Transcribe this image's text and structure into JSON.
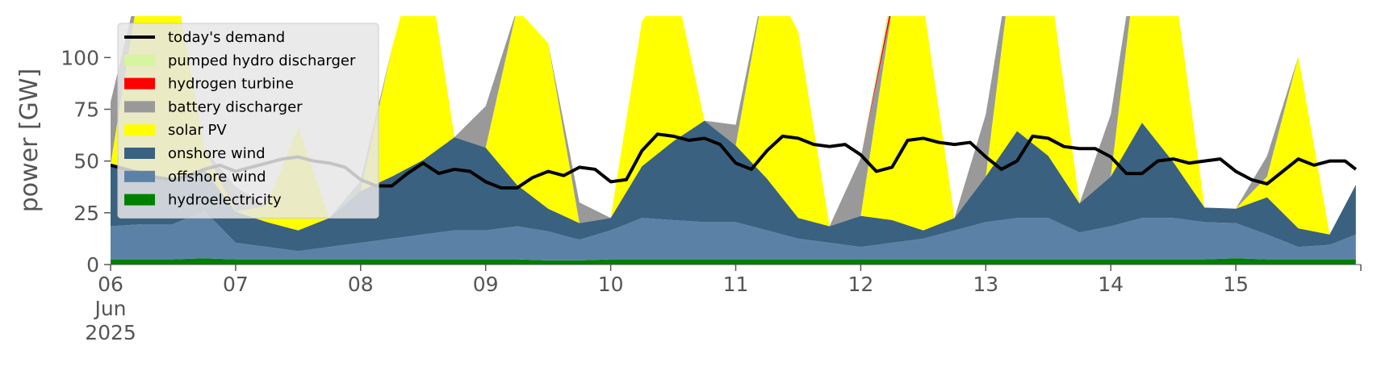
{
  "chart_data": {
    "type": "area",
    "ylabel": "power [GW]",
    "ylim": [
      0,
      120
    ],
    "xlim": [
      "2025-06-06",
      "2025-06-16"
    ],
    "y_ticks": [
      0,
      25,
      50,
      75,
      100
    ],
    "x_ticks": [
      {
        "label": "06",
        "sublabel1": "Jun",
        "sublabel2": "2025",
        "date": "2025-06-06"
      },
      {
        "label": "07",
        "date": "2025-06-07"
      },
      {
        "label": "08",
        "date": "2025-06-08"
      },
      {
        "label": "09",
        "date": "2025-06-09"
      },
      {
        "label": "10",
        "date": "2025-06-10"
      },
      {
        "label": "11",
        "date": "2025-06-11"
      },
      {
        "label": "12",
        "date": "2025-06-12"
      },
      {
        "label": "13",
        "date": "2025-06-13"
      },
      {
        "label": "14",
        "date": "2025-06-14"
      },
      {
        "label": "15",
        "date": "2025-06-15"
      }
    ],
    "grid": false,
    "legend_position": "top-left",
    "legend_entries": [
      {
        "label": "today's demand",
        "color": "#000000",
        "kind": "line"
      },
      {
        "label": "pumped hydro discharger",
        "color": "#d6f5a0",
        "kind": "patch"
      },
      {
        "label": "hydrogen turbine",
        "color": "#ff0000",
        "kind": "patch"
      },
      {
        "label": "battery discharger",
        "color": "#999999",
        "kind": "patch"
      },
      {
        "label": "solar PV",
        "color": "#ffff00",
        "kind": "patch"
      },
      {
        "label": "onshore wind",
        "color": "#3a6180",
        "kind": "patch"
      },
      {
        "label": "offshore wind",
        "color": "#5b82a6",
        "kind": "patch"
      },
      {
        "label": "hydroelectricity",
        "color": "#008000",
        "kind": "patch"
      }
    ],
    "stack_order": [
      "hydroelectricity",
      "offshore wind",
      "onshore wind",
      "solar PV",
      "battery discharger",
      "hydrogen turbine",
      "pumped hydro discharger"
    ],
    "colors": {
      "hydroelectricity": "#008000",
      "offshore wind": "#5b82a6",
      "onshore wind": "#3a6180",
      "solar PV": "#ffff00",
      "battery discharger": "#999999",
      "hydrogen turbine": "#ff0000",
      "pumped hydro discharger": "#d6f5a0"
    },
    "x": [
      6.0,
      6.25,
      6.5,
      6.75,
      7.0,
      7.25,
      7.5,
      7.75,
      8.0,
      8.25,
      8.5,
      8.75,
      9.0,
      9.25,
      9.5,
      9.75,
      10.0,
      10.25,
      10.5,
      10.75,
      11.0,
      11.25,
      11.5,
      11.75,
      12.0,
      12.25,
      12.5,
      12.75,
      13.0,
      13.25,
      13.5,
      13.75,
      14.0,
      14.25,
      14.5,
      14.75,
      15.0,
      15.25,
      15.5,
      15.75,
      15.96
    ],
    "series": [
      {
        "name": "hydroelectricity",
        "values": [
          2.5,
          2.5,
          2.5,
          3,
          2.5,
          2.5,
          2.5,
          2.5,
          2.5,
          2.5,
          2.5,
          2.5,
          2.5,
          2.5,
          2,
          2,
          2.5,
          2.5,
          2.5,
          2.5,
          2.5,
          2.5,
          2.5,
          2.5,
          2.5,
          2.5,
          2.5,
          2.5,
          2.5,
          2.5,
          2.5,
          2.5,
          2.5,
          2.5,
          2.5,
          2.5,
          3,
          2.5,
          2.5,
          2.5,
          2.5
        ]
      },
      {
        "name": "offshore wind",
        "values": [
          16,
          17,
          17,
          23,
          8,
          6,
          4,
          6,
          8,
          10,
          12,
          14,
          14,
          16,
          14,
          10,
          14,
          20,
          19,
          18,
          18,
          14,
          10,
          8,
          6,
          8,
          10,
          14,
          18,
          20,
          20,
          13,
          16,
          20,
          20,
          18,
          17,
          12,
          6,
          7,
          12
        ]
      },
      {
        "name": "onshore wind",
        "values": [
          30,
          22,
          22,
          20,
          15,
          12,
          10,
          14,
          25,
          30,
          36,
          45,
          40,
          20,
          11,
          8,
          6,
          25,
          38,
          49,
          37,
          25,
          10,
          8,
          15,
          11,
          4,
          6,
          22,
          42,
          30,
          14,
          24,
          46,
          27,
          7,
          7,
          18,
          9,
          5,
          24
        ]
      },
      {
        "name": "solar PV",
        "values": [
          0,
          100,
          100,
          10,
          0,
          8,
          50,
          0,
          0,
          62,
          110,
          0,
          0,
          85,
          80,
          0,
          0,
          70,
          80,
          0,
          0,
          100,
          90,
          0,
          0,
          102,
          110,
          0,
          0,
          100,
          90,
          0,
          0,
          100,
          90,
          0,
          0,
          10,
          83,
          0,
          0
        ]
      },
      {
        "name": "battery discharger",
        "values": [
          30,
          0,
          0,
          0,
          12,
          0,
          0,
          0,
          5,
          0,
          0,
          0,
          20,
          0,
          0,
          10,
          0,
          0,
          0,
          0,
          10,
          0,
          0,
          0,
          28,
          0,
          0,
          0,
          30,
          0,
          0,
          0,
          30,
          0,
          0,
          0,
          0,
          10,
          0,
          0,
          0
        ]
      },
      {
        "name": "hydrogen turbine",
        "values": [
          0,
          0,
          0,
          0,
          0,
          0,
          0,
          0,
          0,
          0,
          0,
          0,
          0,
          0,
          0,
          0,
          0,
          0,
          0,
          0,
          0,
          0,
          0,
          0,
          0,
          4,
          0,
          0,
          0,
          0,
          0,
          0,
          0,
          0,
          0,
          0,
          0,
          0,
          0,
          0,
          0
        ]
      },
      {
        "name": "pumped hydro discharger",
        "values": [
          0,
          0,
          0,
          0,
          0,
          0,
          0,
          0,
          0,
          0,
          0,
          0,
          0,
          0,
          0,
          0,
          0,
          0,
          0,
          0,
          0,
          0,
          0,
          0,
          0,
          6,
          0,
          0,
          0,
          0,
          0,
          0,
          0,
          0,
          0,
          0,
          0,
          0,
          0,
          0,
          0
        ]
      }
    ],
    "demand": {
      "name": "today's demand",
      "x": [
        6.0,
        6.125,
        6.25,
        6.375,
        6.5,
        6.625,
        6.75,
        6.875,
        7.0,
        7.125,
        7.25,
        7.375,
        7.5,
        7.625,
        7.75,
        7.875,
        8.0,
        8.125,
        8.25,
        8.375,
        8.5,
        8.625,
        8.75,
        8.875,
        9.0,
        9.125,
        9.25,
        9.375,
        9.5,
        9.625,
        9.75,
        9.875,
        10.0,
        10.125,
        10.25,
        10.375,
        10.5,
        10.625,
        10.75,
        10.875,
        11.0,
        11.125,
        11.25,
        11.375,
        11.5,
        11.625,
        11.75,
        11.875,
        12.0,
        12.125,
        12.25,
        12.375,
        12.5,
        12.625,
        12.75,
        12.875,
        13.0,
        13.125,
        13.25,
        13.375,
        13.5,
        13.625,
        13.75,
        13.875,
        14.0,
        14.125,
        14.25,
        14.375,
        14.5,
        14.625,
        14.75,
        14.875,
        15.0,
        15.125,
        15.25,
        15.375,
        15.5,
        15.625,
        15.75,
        15.875,
        15.96
      ],
      "values": [
        48,
        46,
        44,
        42,
        41,
        43,
        46,
        48,
        45,
        47,
        49,
        51,
        52,
        50,
        49,
        47,
        41,
        38,
        38,
        44,
        49,
        44,
        46,
        45,
        40,
        37,
        37,
        42,
        45,
        43,
        47,
        46,
        40,
        41,
        55,
        63,
        62,
        60,
        61,
        58,
        49,
        46,
        55,
        62,
        61,
        58,
        57,
        58,
        53,
        45,
        47,
        60,
        61,
        59,
        58,
        59,
        52,
        46,
        50,
        62,
        61,
        57,
        56,
        56,
        52,
        44,
        44,
        50,
        51,
        49,
        50,
        51,
        45,
        41,
        39,
        45,
        51,
        48,
        50,
        50,
        46
      ]
    }
  }
}
